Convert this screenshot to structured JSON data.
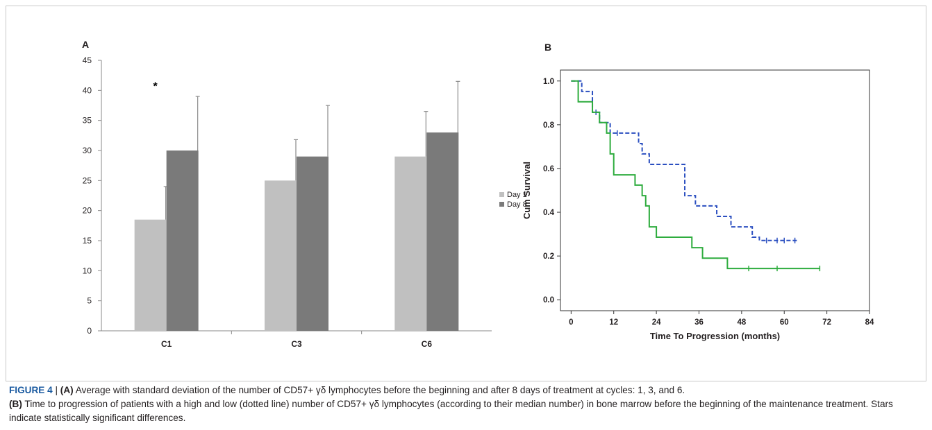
{
  "panels": [
    "A",
    "B"
  ],
  "chart_data": [
    {
      "type": "bar",
      "categories": [
        "C1",
        "C3",
        "C6"
      ],
      "series": [
        {
          "name": "Day 1",
          "color": "#c0c0c0",
          "values": [
            18.5,
            25,
            29
          ],
          "error": [
            5.5,
            6.8,
            7.5
          ]
        },
        {
          "name": "Day 8",
          "color": "#7a7a7a",
          "values": [
            30,
            29,
            33
          ],
          "error": [
            9,
            8.5,
            8.5
          ]
        }
      ],
      "ylim": [
        0,
        45
      ],
      "yticks": [
        0,
        5,
        10,
        15,
        20,
        25,
        30,
        35,
        40,
        45
      ],
      "annotations": [
        {
          "category": "C1",
          "series": "Day 1",
          "y": 41,
          "text": "*"
        }
      ],
      "legend": "right",
      "grid": false
    },
    {
      "type": "line",
      "ylabel": "Cum Survival",
      "xlabel": "Time To Progression (months)",
      "xlim": [
        -3,
        84
      ],
      "ylim": [
        -0.05,
        1.05
      ],
      "xticks": [
        0,
        12,
        24,
        36,
        48,
        60,
        72,
        84
      ],
      "yticks": [
        0.0,
        0.2,
        0.4,
        0.6,
        0.8,
        1.0
      ],
      "ytick_labels": [
        "0.0",
        "0.2",
        "0.4",
        "0.6",
        "0.8",
        "1.0"
      ],
      "series": [
        {
          "color": "#2b4fc0",
          "dashed": true,
          "steps": [
            [
              0,
              1.0
            ],
            [
              3,
              0.952
            ],
            [
              6,
              0.857
            ],
            [
              8,
              0.81
            ],
            [
              11,
              0.762
            ],
            [
              19,
              0.714
            ],
            [
              20,
              0.667
            ],
            [
              22,
              0.619
            ],
            [
              32,
              0.476
            ],
            [
              35,
              0.429
            ],
            [
              41,
              0.381
            ],
            [
              45,
              0.333
            ],
            [
              51,
              0.286
            ],
            [
              53,
              0.271
            ],
            [
              64,
              0.271
            ]
          ],
          "censored": [
            [
              7,
              0.857
            ],
            [
              13,
              0.762
            ],
            [
              55,
              0.271
            ],
            [
              58,
              0.271
            ],
            [
              60,
              0.271
            ],
            [
              63,
              0.271
            ]
          ]
        },
        {
          "color": "#2eac3e",
          "dashed": false,
          "steps": [
            [
              0,
              1.0
            ],
            [
              2,
              0.905
            ],
            [
              6,
              0.857
            ],
            [
              8,
              0.81
            ],
            [
              10,
              0.762
            ],
            [
              11,
              0.667
            ],
            [
              12,
              0.571
            ],
            [
              18,
              0.524
            ],
            [
              20,
              0.476
            ],
            [
              21,
              0.429
            ],
            [
              22,
              0.333
            ],
            [
              24,
              0.286
            ],
            [
              34,
              0.238
            ],
            [
              37,
              0.19
            ],
            [
              44,
              0.143
            ],
            [
              70,
              0.143
            ]
          ],
          "censored": [
            [
              50,
              0.143
            ],
            [
              58,
              0.143
            ],
            [
              70,
              0.143
            ]
          ]
        }
      ]
    }
  ],
  "caption": {
    "label": "FIGURE 4",
    "separator": " | ",
    "a_tag": "(A)",
    "a_text": " Average with standard deviation of the number of CD57+ γδ lymphocytes before the beginning and after 8 days of treatment at cycles: 1, 3, and 6.",
    "b_tag": "(B)",
    "b_text": " Time to progression of patients with a high and low (dotted line) number of CD57+ γδ lymphocytes (according to their median number) in bone marrow before the beginning of the maintenance treatment. Stars indicate statistically significant differences."
  }
}
